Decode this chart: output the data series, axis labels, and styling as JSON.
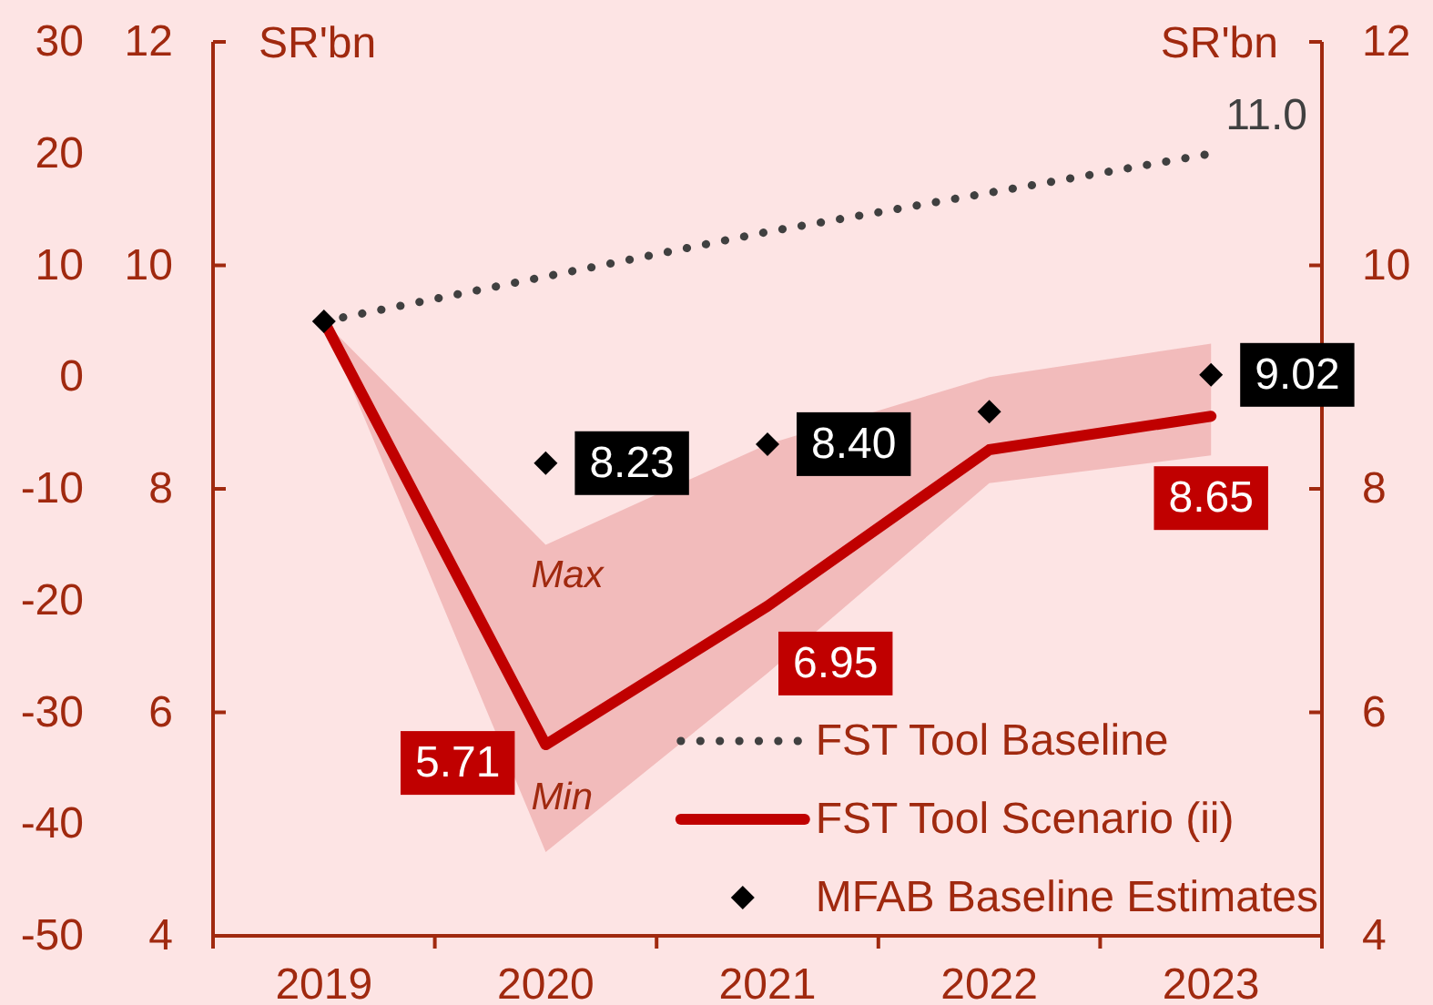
{
  "chart_data": {
    "type": "line",
    "categories": [
      "2019",
      "2020",
      "2021",
      "2022",
      "2023"
    ],
    "ylabel": "SR'bn",
    "y2label": "SR'bn",
    "ylim": [
      4,
      12
    ],
    "yticks": [
      4,
      6,
      8,
      10,
      12
    ],
    "y2lim": [
      4,
      12
    ],
    "y2ticks": [
      4,
      6,
      8,
      10,
      12
    ],
    "y3lim": [
      -50,
      30
    ],
    "y3ticks": [
      -50,
      -40,
      -30,
      -20,
      -10,
      0,
      10,
      20,
      30
    ],
    "series": [
      {
        "name": "FST Tool Baseline",
        "type": "line",
        "color": "#404040",
        "line_style": "dotted",
        "marker": "none",
        "values": [
          9.5,
          9.9,
          10.3,
          10.65,
          11.0
        ],
        "value_labels": [
          null,
          null,
          null,
          null,
          "11.0"
        ]
      },
      {
        "name": "FST Tool Scenario (ii)",
        "type": "line",
        "color": "#c00000",
        "line_style": "solid",
        "marker": "none",
        "values": [
          9.5,
          5.71,
          6.95,
          8.35,
          8.65
        ],
        "lower": [
          9.5,
          4.75,
          6.35,
          8.05,
          8.3
        ],
        "upper": [
          9.5,
          7.5,
          8.4,
          9.0,
          9.3
        ],
        "value_labels": [
          null,
          "5.71",
          "6.95",
          null,
          "8.65"
        ]
      },
      {
        "name": "MFAB Baseline Estimates",
        "type": "scatter",
        "color": "#000000",
        "marker": "diamond",
        "values": [
          9.5,
          8.23,
          8.4,
          8.69,
          9.02
        ],
        "value_labels": [
          null,
          "8.23",
          "8.40",
          null,
          "9.02"
        ]
      }
    ],
    "annotations": [
      "Max",
      "Min"
    ],
    "legend": "bottom right"
  }
}
